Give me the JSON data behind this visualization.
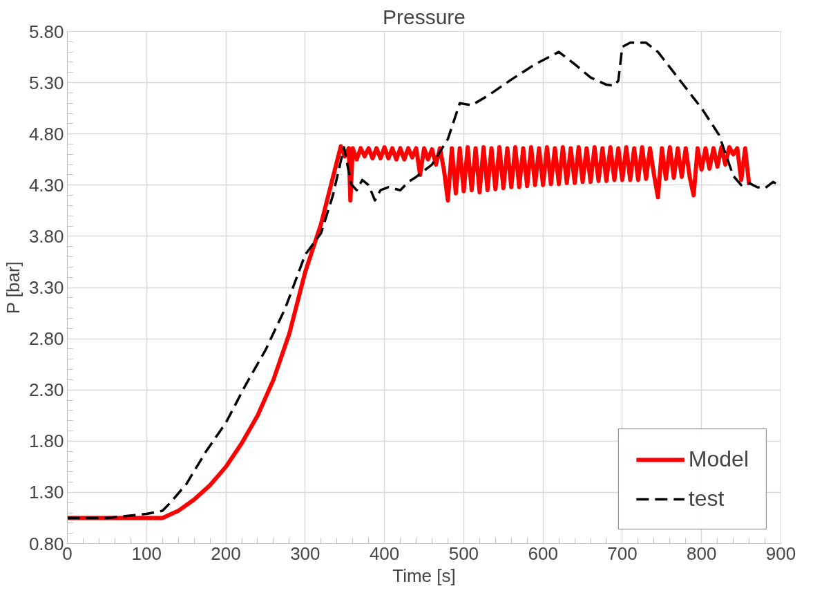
{
  "chart_data": {
    "type": "line",
    "title": "Pressure",
    "xlabel": "Time [s]",
    "ylabel": "P [bar]",
    "xlim": [
      0,
      900
    ],
    "xticks": [
      0,
      100,
      200,
      300,
      400,
      500,
      600,
      700,
      800,
      900
    ],
    "ylim": [
      0.8,
      5.8
    ],
    "yticks": [
      {
        "value": 0.8,
        "label": "0.80"
      },
      {
        "value": 1.3,
        "label": "1.30"
      },
      {
        "value": 1.8,
        "label": "1.80"
      },
      {
        "value": 2.3,
        "label": "2.30"
      },
      {
        "value": 2.8,
        "label": "2.80"
      },
      {
        "value": 3.3,
        "label": "3.30"
      },
      {
        "value": 3.8,
        "label": "3.80"
      },
      {
        "value": 4.3,
        "label": "4.30"
      },
      {
        "value": 4.8,
        "label": "4.80"
      },
      {
        "value": 5.3,
        "label": "5.30"
      },
      {
        "value": 5.8,
        "label": "5.80"
      }
    ],
    "grid": true,
    "legend": "bottom right",
    "marker": "none",
    "series": [
      {
        "name": "Model",
        "color": "#ff0000",
        "line_style": "solid",
        "x": [
          0,
          120,
          140,
          160,
          180,
          200,
          220,
          240,
          260,
          280,
          300,
          320,
          345,
          350,
          355,
          357,
          360,
          365,
          370,
          375,
          380,
          385,
          390,
          395,
          400,
          405,
          410,
          415,
          420,
          425,
          430,
          435,
          440,
          445,
          450,
          455,
          460,
          465,
          470,
          475,
          480,
          485,
          490,
          495,
          500,
          505,
          510,
          515,
          520,
          525,
          530,
          535,
          540,
          545,
          550,
          555,
          560,
          565,
          570,
          575,
          580,
          585,
          590,
          595,
          600,
          605,
          610,
          615,
          620,
          625,
          630,
          635,
          640,
          645,
          650,
          655,
          660,
          665,
          670,
          675,
          680,
          685,
          690,
          695,
          700,
          705,
          710,
          715,
          720,
          725,
          730,
          735,
          740,
          745,
          750,
          755,
          760,
          765,
          770,
          775,
          780,
          785,
          790,
          795,
          800,
          805,
          810,
          815,
          820,
          825,
          830,
          835,
          840,
          845,
          850,
          855,
          860
        ],
        "values": [
          1.05,
          1.05,
          1.12,
          1.23,
          1.37,
          1.55,
          1.78,
          2.05,
          2.4,
          2.85,
          3.45,
          3.92,
          4.68,
          4.58,
          4.66,
          4.15,
          4.66,
          4.55,
          4.66,
          4.58,
          4.66,
          4.56,
          4.66,
          4.56,
          4.67,
          4.56,
          4.66,
          4.55,
          4.66,
          4.55,
          4.66,
          4.57,
          4.66,
          4.4,
          4.66,
          4.55,
          4.65,
          4.5,
          4.66,
          4.45,
          4.15,
          4.66,
          4.22,
          4.66,
          4.24,
          4.67,
          4.25,
          4.66,
          4.23,
          4.67,
          4.25,
          4.66,
          4.26,
          4.67,
          4.27,
          4.66,
          4.28,
          4.67,
          4.28,
          4.66,
          4.29,
          4.67,
          4.3,
          4.66,
          4.3,
          4.67,
          4.31,
          4.66,
          4.31,
          4.67,
          4.32,
          4.66,
          4.32,
          4.67,
          4.33,
          4.66,
          4.33,
          4.67,
          4.34,
          4.66,
          4.34,
          4.67,
          4.35,
          4.66,
          4.35,
          4.67,
          4.35,
          4.66,
          4.35,
          4.67,
          4.36,
          4.66,
          4.4,
          4.18,
          4.66,
          4.36,
          4.67,
          4.37,
          4.66,
          4.38,
          4.66,
          4.38,
          4.2,
          4.66,
          4.45,
          4.66,
          4.46,
          4.66,
          4.48,
          4.67,
          4.5,
          4.67,
          4.6,
          4.66,
          4.35,
          4.66,
          4.3
        ]
      },
      {
        "name": "test",
        "color": "#000000",
        "line_style": "dashed",
        "x": [
          0,
          50,
          100,
          120,
          130,
          150,
          175,
          200,
          225,
          250,
          275,
          300,
          320,
          335,
          349,
          358,
          365,
          372,
          380,
          388,
          395,
          405,
          420,
          430,
          440,
          460,
          480,
          495,
          510,
          530,
          560,
          590,
          620,
          640,
          660,
          680,
          690,
          695,
          700,
          710,
          730,
          745,
          770,
          800,
          822,
          840,
          850,
          860,
          870,
          880,
          890,
          900
        ],
        "values": [
          1.05,
          1.05,
          1.09,
          1.12,
          1.2,
          1.38,
          1.7,
          1.98,
          2.35,
          2.69,
          3.1,
          3.62,
          3.83,
          4.2,
          4.67,
          4.31,
          4.25,
          4.35,
          4.3,
          4.15,
          4.25,
          4.28,
          4.25,
          4.33,
          4.38,
          4.5,
          4.75,
          5.1,
          5.08,
          5.17,
          5.33,
          5.48,
          5.6,
          5.48,
          5.35,
          5.28,
          5.27,
          5.32,
          5.65,
          5.69,
          5.69,
          5.6,
          5.35,
          5.05,
          4.79,
          4.39,
          4.3,
          4.32,
          4.28,
          4.27,
          4.33,
          4.3
        ]
      }
    ]
  }
}
